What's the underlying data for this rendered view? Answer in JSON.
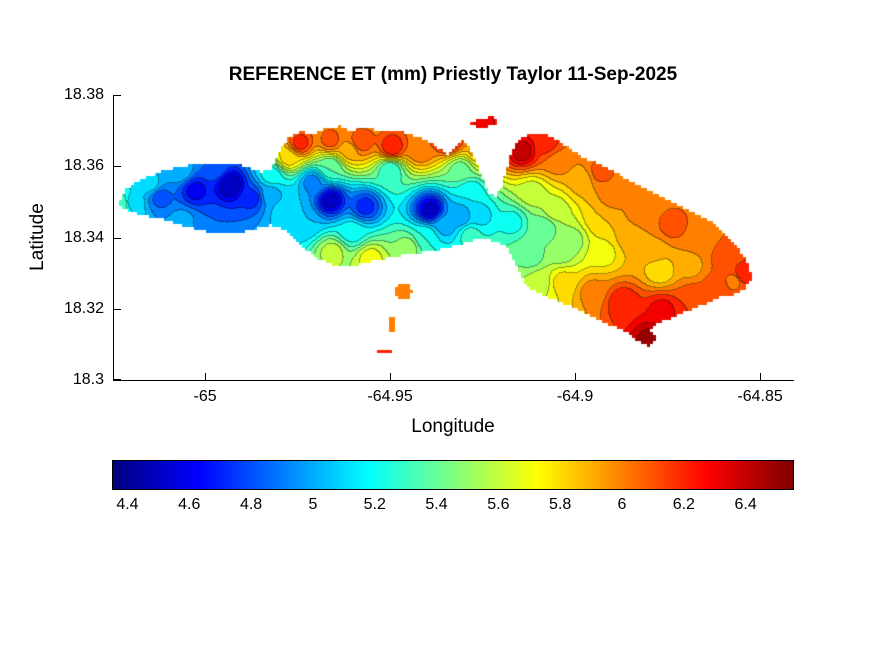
{
  "figure": {
    "background": "#ffffff",
    "text_color": "#000000"
  },
  "chart_data": {
    "type": "heatmap",
    "subtype": "filled-contour-map",
    "title": "REFERENCE ET (mm) Priestly Taylor 11-Sep-2025",
    "xlabel": "Longitude",
    "ylabel": "Latitude",
    "xlim": [
      -65.0249,
      -64.8411
    ],
    "ylim": [
      18.3,
      18.38
    ],
    "xticks": [
      -65,
      -64.95,
      -64.9,
      -64.85
    ],
    "xtick_labels": [
      "-65",
      "-64.95",
      "-64.9",
      "-64.85"
    ],
    "yticks": [
      18.38,
      18.36,
      18.34,
      18.32,
      18.3
    ],
    "ytick_labels": [
      "18.38",
      "18.36",
      "18.34",
      "18.32",
      "18.3"
    ],
    "grid": false,
    "legend": "horizontal colorbar below plot",
    "colormap": "jet",
    "clim": [
      4.35,
      6.55
    ],
    "contour_interval": 0.1,
    "colorbar": {
      "orientation": "horizontal",
      "ticks": [
        4.4,
        4.6,
        4.8,
        5,
        5.2,
        5.4,
        5.6,
        5.8,
        6,
        6.2,
        6.4
      ],
      "tick_labels": [
        "4.4",
        "4.6",
        "4.8",
        "5",
        "5.2",
        "5.4",
        "5.6",
        "5.8",
        "6",
        "6.2",
        "6.4"
      ]
    },
    "units": "mm",
    "island_outline": [
      [
        -65.0235,
        18.3491
      ],
      [
        -65.0216,
        18.3533
      ],
      [
        -65.0176,
        18.3561
      ],
      [
        -65.0122,
        18.3584
      ],
      [
        -65.0054,
        18.3601
      ],
      [
        -64.9973,
        18.3609
      ],
      [
        -64.9892,
        18.3601
      ],
      [
        -64.9846,
        18.3584
      ],
      [
        -64.9819,
        18.3595
      ],
      [
        -64.9797,
        18.3646
      ],
      [
        -64.9776,
        18.3679
      ],
      [
        -64.9743,
        18.3696
      ],
      [
        -64.9703,
        18.3691
      ],
      [
        -64.9676,
        18.3707
      ],
      [
        -64.9635,
        18.3713
      ],
      [
        -64.9603,
        18.3699
      ],
      [
        -64.9565,
        18.371
      ],
      [
        -64.9527,
        18.3696
      ],
      [
        -64.9486,
        18.3702
      ],
      [
        -64.9446,
        18.3688
      ],
      [
        -64.9405,
        18.3674
      ],
      [
        -64.9373,
        18.3654
      ],
      [
        -64.9346,
        18.3634
      ],
      [
        -64.9324,
        18.3648
      ],
      [
        -64.9303,
        18.3677
      ],
      [
        -64.9284,
        18.3651
      ],
      [
        -64.9265,
        18.3609
      ],
      [
        -64.9246,
        18.3556
      ],
      [
        -64.9232,
        18.3522
      ],
      [
        -64.9214,
        18.3517
      ],
      [
        -64.9197,
        18.3545
      ],
      [
        -64.9184,
        18.3595
      ],
      [
        -64.917,
        18.3646
      ],
      [
        -64.9154,
        18.3674
      ],
      [
        -64.9127,
        18.3688
      ],
      [
        -64.9089,
        18.3693
      ],
      [
        -64.9051,
        18.3677
      ],
      [
        -64.9019,
        18.3654
      ],
      [
        -64.8986,
        18.3629
      ],
      [
        -64.8943,
        18.3609
      ],
      [
        -64.8895,
        18.3584
      ],
      [
        -64.8841,
        18.3553
      ],
      [
        -64.8784,
        18.3522
      ],
      [
        -64.8727,
        18.3494
      ],
      [
        -64.867,
        18.3466
      ],
      [
        -64.8624,
        18.3438
      ],
      [
        -64.8584,
        18.3399
      ],
      [
        -64.8551,
        18.3359
      ],
      [
        -64.853,
        18.3323
      ],
      [
        -64.8522,
        18.3289
      ],
      [
        -64.8538,
        18.3258
      ],
      [
        -64.8568,
        18.3241
      ],
      [
        -64.8608,
        18.3233
      ],
      [
        -64.8651,
        18.3213
      ],
      [
        -64.8695,
        18.3194
      ],
      [
        -64.8738,
        18.3174
      ],
      [
        -64.8776,
        18.316
      ],
      [
        -64.8797,
        18.314
      ],
      [
        -64.8781,
        18.3118
      ],
      [
        -64.8797,
        18.3095
      ],
      [
        -64.883,
        18.3107
      ],
      [
        -64.8857,
        18.3135
      ],
      [
        -64.89,
        18.3152
      ],
      [
        -64.8943,
        18.3174
      ],
      [
        -64.8986,
        18.3196
      ],
      [
        -64.9032,
        18.3216
      ],
      [
        -64.9078,
        18.3233
      ],
      [
        -64.9116,
        18.3253
      ],
      [
        -64.9141,
        18.3281
      ],
      [
        -64.9159,
        18.332
      ],
      [
        -64.9176,
        18.3359
      ],
      [
        -64.9197,
        18.3382
      ],
      [
        -64.923,
        18.3393
      ],
      [
        -64.9268,
        18.3393
      ],
      [
        -64.9311,
        18.3379
      ],
      [
        -64.9357,
        18.3368
      ],
      [
        -64.9408,
        18.3359
      ],
      [
        -64.9462,
        18.3351
      ],
      [
        -64.9516,
        18.334
      ],
      [
        -64.957,
        18.3328
      ],
      [
        -64.9622,
        18.3317
      ],
      [
        -64.9662,
        18.3326
      ],
      [
        -64.9703,
        18.3345
      ],
      [
        -64.9735,
        18.3373
      ],
      [
        -64.9762,
        18.3401
      ],
      [
        -64.9789,
        18.3424
      ],
      [
        -64.9824,
        18.3435
      ],
      [
        -64.9862,
        18.3424
      ],
      [
        -64.9905,
        18.3413
      ],
      [
        -64.9954,
        18.341
      ],
      [
        -65.0003,
        18.3418
      ],
      [
        -65.0057,
        18.3432
      ],
      [
        -65.0114,
        18.3452
      ],
      [
        -65.0168,
        18.3463
      ],
      [
        -65.0208,
        18.3474
      ]
    ],
    "islets": [
      {
        "et": 6.3,
        "outline": [
          [
            -64.9284,
            18.3724
          ],
          [
            -64.9224,
            18.3741
          ],
          [
            -64.9203,
            18.3724
          ],
          [
            -64.9262,
            18.3702
          ]
        ]
      },
      {
        "et": 6.0,
        "outline": [
          [
            -64.9489,
            18.3247
          ],
          [
            -64.9476,
            18.3269
          ],
          [
            -64.9451,
            18.3269
          ],
          [
            -64.9438,
            18.325
          ],
          [
            -64.9449,
            18.3227
          ],
          [
            -64.9478,
            18.3225
          ]
        ]
      },
      {
        "et": 6.0,
        "outline": [
          [
            -64.95,
            18.3174
          ],
          [
            -64.9484,
            18.3174
          ],
          [
            -64.9484,
            18.3135
          ],
          [
            -64.95,
            18.3135
          ]
        ]
      },
      {
        "et": 6.2,
        "outline": [
          [
            -64.9538,
            18.3087
          ],
          [
            -64.9495,
            18.3087
          ],
          [
            -64.9495,
            18.3076
          ],
          [
            -64.9538,
            18.3076
          ]
        ]
      }
    ],
    "samples_format": [
      "lon",
      "lat",
      "et_mm"
    ],
    "samples": [
      [
        -64.9932,
        18.3547,
        4.45
      ],
      [
        -65.0027,
        18.3533,
        4.6
      ],
      [
        -65.0122,
        18.3514,
        4.8
      ],
      [
        -65.0197,
        18.35,
        5.1
      ],
      [
        -65.0227,
        18.3497,
        5.35
      ],
      [
        -64.9873,
        18.3511,
        4.7
      ],
      [
        -64.9978,
        18.3598,
        4.85
      ],
      [
        -64.9986,
        18.3432,
        4.85
      ],
      [
        -64.9824,
        18.3519,
        5.0
      ],
      [
        -64.9789,
        18.3477,
        5.1
      ],
      [
        -64.9743,
        18.3665,
        6.2
      ],
      [
        -64.9662,
        18.3674,
        6.1
      ],
      [
        -64.9581,
        18.3668,
        6.15
      ],
      [
        -64.9495,
        18.3654,
        6.25
      ],
      [
        -64.9419,
        18.3646,
        6.05
      ],
      [
        -64.9343,
        18.3674,
        6.3
      ],
      [
        -64.9776,
        18.3623,
        5.8
      ],
      [
        -64.9662,
        18.3598,
        5.35
      ],
      [
        -64.95,
        18.359,
        5.25
      ],
      [
        -64.9662,
        18.3505,
        4.5
      ],
      [
        -64.9568,
        18.3488,
        4.7
      ],
      [
        -64.9392,
        18.348,
        4.5
      ],
      [
        -64.9311,
        18.346,
        4.95
      ],
      [
        -64.973,
        18.3444,
        5.05
      ],
      [
        -64.9711,
        18.3556,
        4.9
      ],
      [
        -64.9657,
        18.3359,
        5.6
      ],
      [
        -64.9554,
        18.3342,
        5.7
      ],
      [
        -64.9451,
        18.3373,
        5.5
      ],
      [
        -64.9603,
        18.3415,
        5.2
      ],
      [
        -64.9405,
        18.3401,
        5.25
      ],
      [
        -64.9257,
        18.3463,
        5.1
      ],
      [
        -64.917,
        18.3444,
        5.2
      ],
      [
        -64.9086,
        18.3427,
        5.35
      ],
      [
        -64.9284,
        18.3528,
        5.15
      ],
      [
        -64.9116,
        18.3528,
        5.6
      ],
      [
        -64.9146,
        18.3643,
        6.45
      ],
      [
        -64.9078,
        18.3665,
        6.2
      ],
      [
        -64.9186,
        18.3665,
        6.1
      ],
      [
        -64.9046,
        18.3612,
        6.0
      ],
      [
        -64.8981,
        18.3561,
        5.9
      ],
      [
        -64.89,
        18.3517,
        6.0
      ],
      [
        -64.8814,
        18.3472,
        6.05
      ],
      [
        -64.8738,
        18.3432,
        6.1
      ],
      [
        -64.8662,
        18.3393,
        6.0
      ],
      [
        -64.8592,
        18.3348,
        6.1
      ],
      [
        -64.8549,
        18.3295,
        6.25
      ],
      [
        -64.8784,
        18.3359,
        5.9
      ],
      [
        -64.8924,
        18.3357,
        5.7
      ],
      [
        -64.9008,
        18.3393,
        5.5
      ],
      [
        -64.9035,
        18.3275,
        5.8
      ],
      [
        -64.8954,
        18.3247,
        6.0
      ],
      [
        -64.8873,
        18.3219,
        6.25
      ],
      [
        -64.8765,
        18.3196,
        6.3
      ],
      [
        -64.8684,
        18.3225,
        6.15
      ],
      [
        -64.8797,
        18.3115,
        6.5
      ],
      [
        -64.8619,
        18.3258,
        6.1
      ],
      [
        -64.9095,
        18.3275,
        5.6
      ],
      [
        -64.9119,
        18.3348,
        5.4
      ],
      [
        -64.9465,
        18.3247,
        6.0
      ],
      [
        -64.9492,
        18.3154,
        6.0
      ],
      [
        -64.9516,
        18.3081,
        6.2
      ],
      [
        -64.9246,
        18.3724,
        6.3
      ],
      [
        -64.8568,
        18.3281,
        6.0
      ],
      [
        -64.8932,
        18.3449,
        5.85
      ],
      [
        -64.8851,
        18.3399,
        5.9
      ],
      [
        -64.9054,
        18.3477,
        5.6
      ],
      [
        -65.0068,
        18.3589,
        5.05
      ],
      [
        -65.0149,
        18.355,
        5.1
      ],
      [
        -65.0062,
        18.3446,
        5.0
      ],
      [
        -64.9819,
        18.3575,
        5.2
      ],
      [
        -64.9608,
        18.3646,
        5.9
      ],
      [
        -64.877,
        18.3309,
        5.75
      ],
      [
        -64.8689,
        18.3323,
        5.9
      ],
      [
        -64.9284,
        18.3407,
        5.3
      ],
      [
        -64.9351,
        18.3435,
        5.0
      ],
      [
        -64.9041,
        18.3365,
        5.45
      ],
      [
        -64.9257,
        18.3646,
        5.9
      ],
      [
        -64.9311,
        18.359,
        5.4
      ],
      [
        -64.8932,
        18.3584,
        6.1
      ]
    ]
  }
}
